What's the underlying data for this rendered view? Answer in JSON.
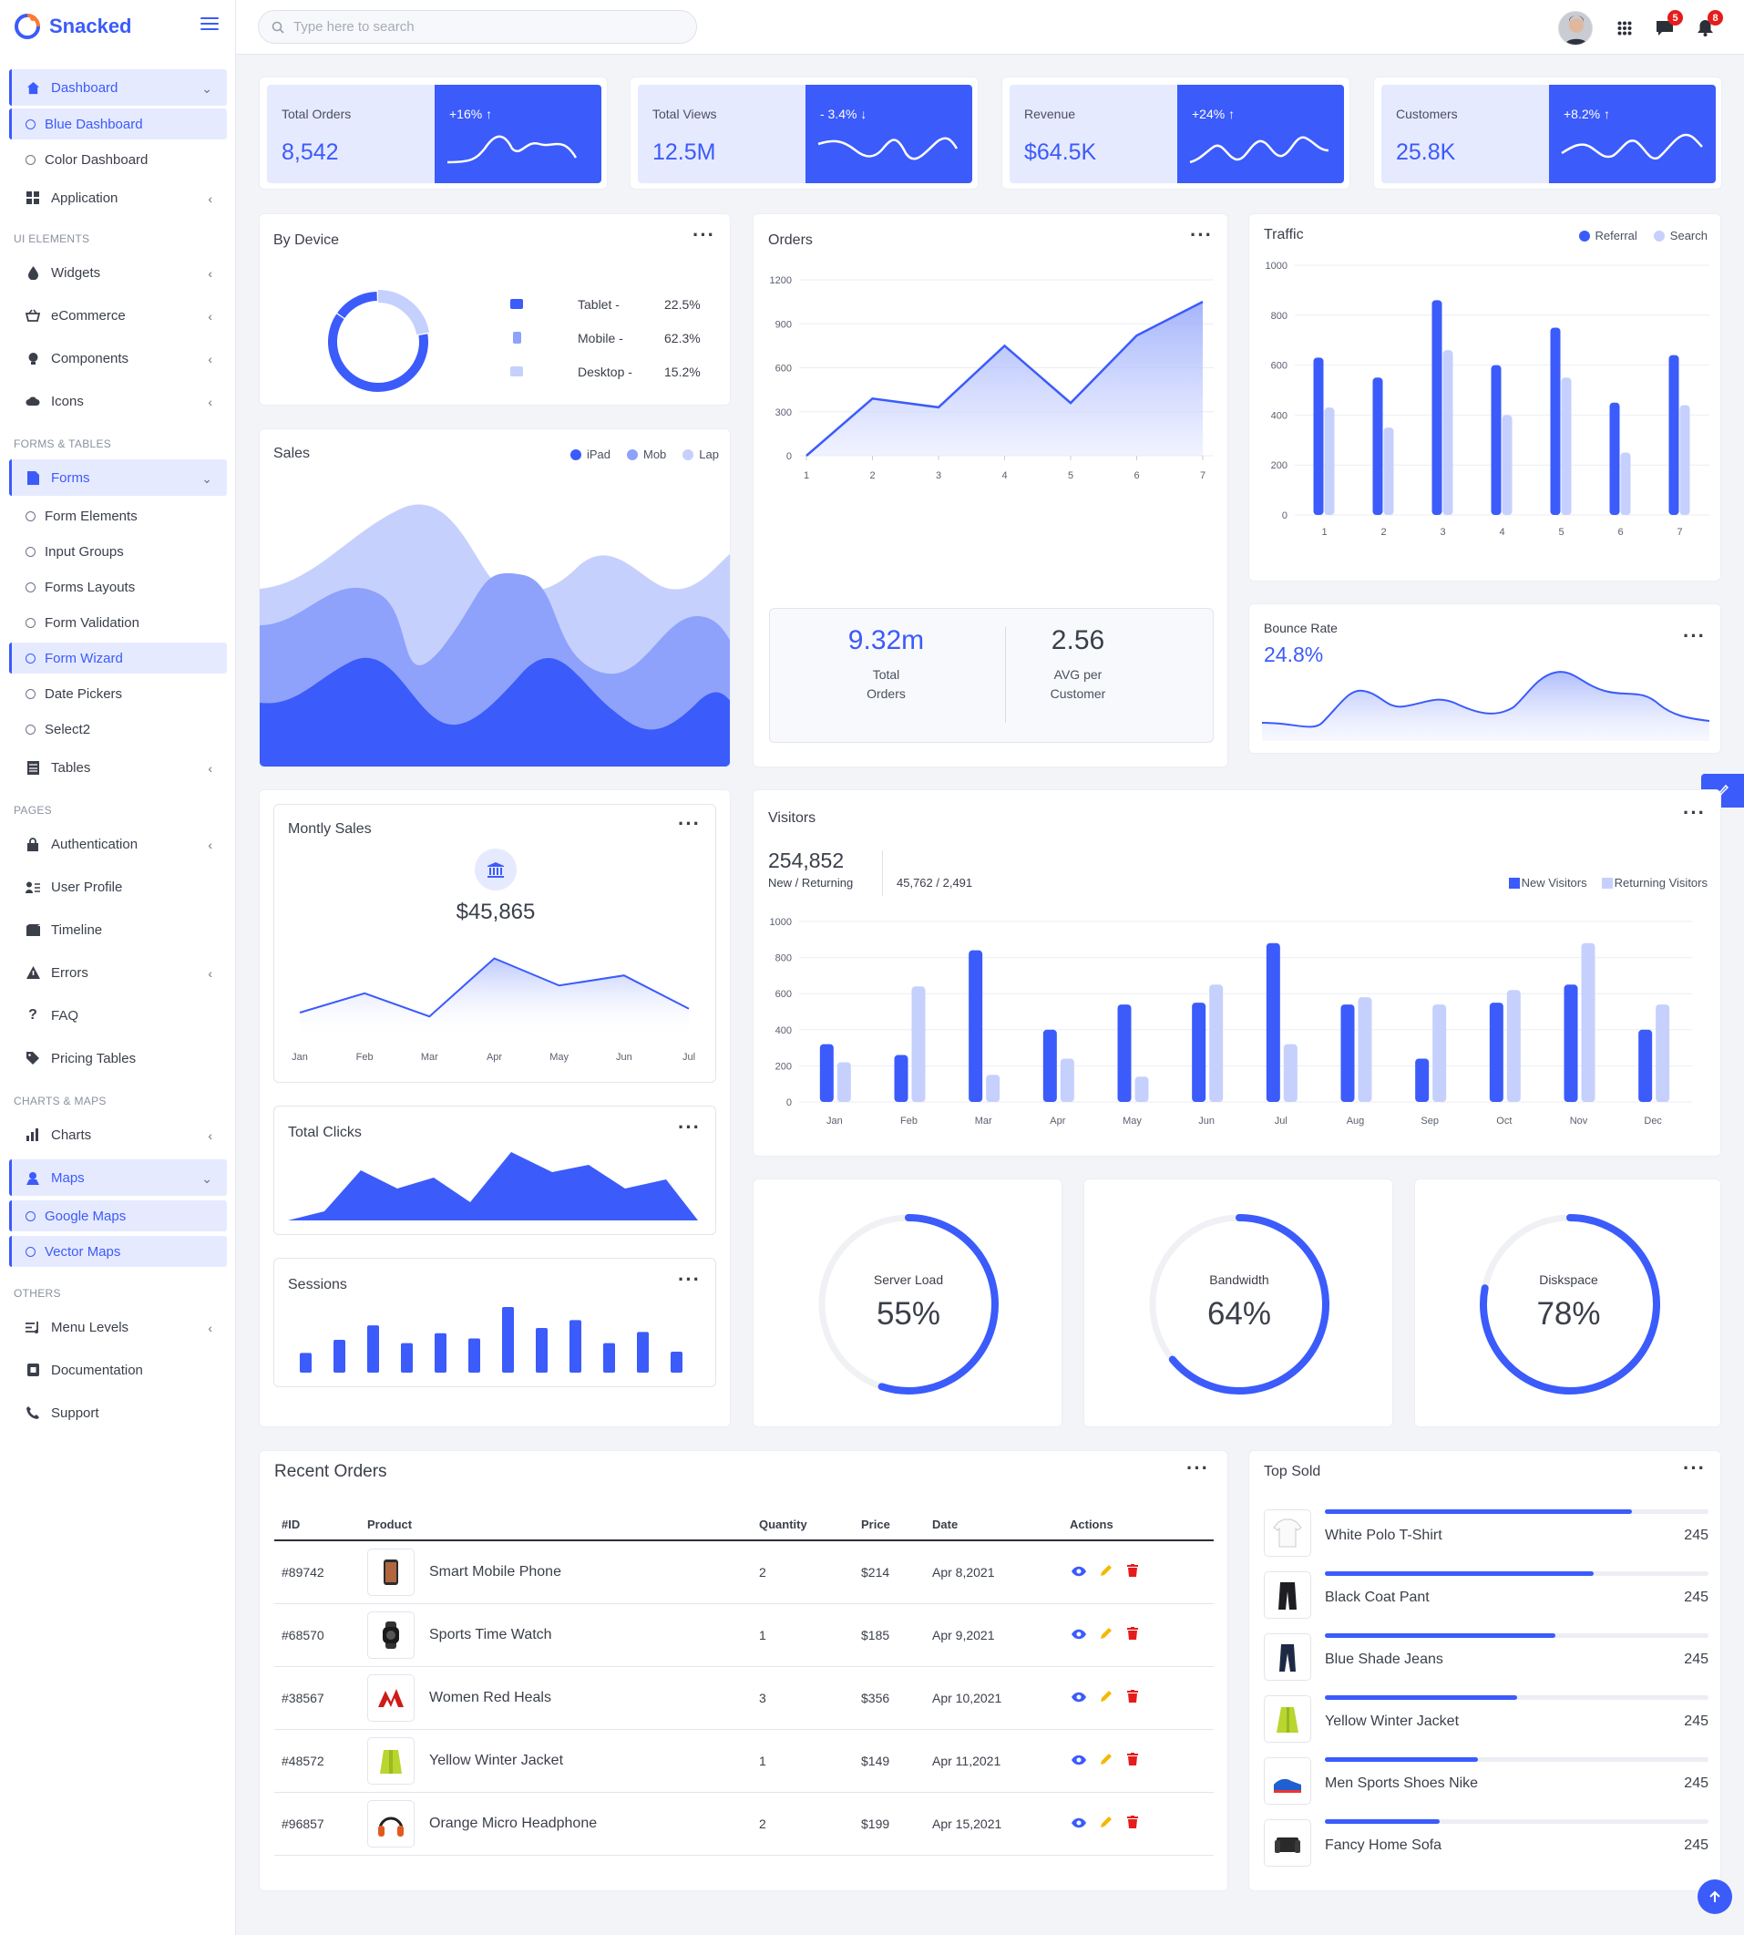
{
  "app": {
    "brand": "Snacked"
  },
  "search": {
    "placeholder": "Type here to search"
  },
  "header": {
    "messages_count": "5",
    "notifications_count": "8"
  },
  "sidebar": {
    "dashboard": "Dashboard",
    "blue_dashboard": "Blue Dashboard",
    "color_dashboard": "Color Dashboard",
    "application": "Application",
    "sec_ui": "UI ELEMENTS",
    "widgets": "Widgets",
    "ecommerce": "eCommerce",
    "components": "Components",
    "icons": "Icons",
    "sec_forms": "FORMS & TABLES",
    "forms": "Forms",
    "form_elements": "Form Elements",
    "input_groups": "Input Groups",
    "forms_layouts": "Forms Layouts",
    "form_validation": "Form Validation",
    "form_wizard": "Form Wizard",
    "date_pickers": "Date Pickers",
    "select2": "Select2",
    "tables": "Tables",
    "sec_pages": "PAGES",
    "authentication": "Authentication",
    "user_profile": "User Profile",
    "timeline": "Timeline",
    "errors": "Errors",
    "faq": "FAQ",
    "pricing_tables": "Pricing Tables",
    "sec_charts": "CHARTS & MAPS",
    "charts": "Charts",
    "maps": "Maps",
    "google_maps": "Google Maps",
    "vector_maps": "Vector Maps",
    "sec_others": "OTHERS",
    "menu_levels": "Menu Levels",
    "documentation": "Documentation",
    "support": "Support"
  },
  "stats": [
    {
      "label": "Total Orders",
      "value": "8,542",
      "change": "+16% ↑"
    },
    {
      "label": "Total Views",
      "value": "12.5M",
      "change": "- 3.4% ↓"
    },
    {
      "label": "Revenue",
      "value": "$64.5K",
      "change": "+24% ↑"
    },
    {
      "label": "Customers",
      "value": "25.8K",
      "change": "+8.2% ↑"
    }
  ],
  "by_device": {
    "title": "By Device",
    "items": [
      {
        "name": "Tablet -",
        "pct": "22.5%"
      },
      {
        "name": "Mobile -",
        "pct": "62.3%"
      },
      {
        "name": "Desktop -",
        "pct": "15.2%"
      }
    ]
  },
  "sales": {
    "title": "Sales",
    "legend": [
      "iPad",
      "Mob",
      "Lap"
    ]
  },
  "orders": {
    "title": "Orders",
    "total_value": "9.32m",
    "total_label1": "Total",
    "total_label2": "Orders",
    "avg_value": "2.56",
    "avg_label1": "AVG per",
    "avg_label2": "Customer"
  },
  "traffic": {
    "title": "Traffic",
    "legend": [
      "Referral",
      "Search"
    ]
  },
  "bounce": {
    "title": "Bounce Rate",
    "value": "24.8%"
  },
  "monthly_sales": {
    "title": "Montly Sales",
    "value": "$45,865"
  },
  "total_clicks": {
    "title": "Total Clicks"
  },
  "sessions": {
    "title": "Sessions"
  },
  "visitors": {
    "title": "Visitors",
    "value": "254,852",
    "sub": "New / Returning",
    "split": "45,762 / 2,491",
    "legend": [
      "New Visitors",
      "Returning Visitors"
    ]
  },
  "gauges": [
    {
      "label": "Server Load",
      "value": "55%",
      "pct": 55
    },
    {
      "label": "Bandwidth",
      "value": "64%",
      "pct": 64
    },
    {
      "label": "Diskspace",
      "value": "78%",
      "pct": 78
    }
  ],
  "recent_orders": {
    "title": "Recent Orders",
    "headers": [
      "#ID",
      "Product",
      "Quantity",
      "Price",
      "Date",
      "Actions"
    ],
    "rows": [
      {
        "id": "#89742",
        "product": "Smart Mobile Phone",
        "qty": "2",
        "price": "$214",
        "date": "Apr 8,2021"
      },
      {
        "id": "#68570",
        "product": "Sports Time Watch",
        "qty": "1",
        "price": "$185",
        "date": "Apr 9,2021"
      },
      {
        "id": "#38567",
        "product": "Women Red Heals",
        "qty": "3",
        "price": "$356",
        "date": "Apr 10,2021"
      },
      {
        "id": "#48572",
        "product": "Yellow Winter Jacket",
        "qty": "1",
        "price": "$149",
        "date": "Apr 11,2021"
      },
      {
        "id": "#96857",
        "product": "Orange Micro Headphone",
        "qty": "2",
        "price": "$199",
        "date": "Apr 15,2021"
      }
    ]
  },
  "top_sold": {
    "title": "Top Sold",
    "items": [
      {
        "name": "White Polo T-Shirt",
        "count": "245",
        "progress": 0.8
      },
      {
        "name": "Black Coat Pant",
        "count": "245",
        "progress": 0.7
      },
      {
        "name": "Blue Shade Jeans",
        "count": "245",
        "progress": 0.6
      },
      {
        "name": "Yellow Winter Jacket",
        "count": "245",
        "progress": 0.5
      },
      {
        "name": "Men Sports Shoes Nike",
        "count": "245",
        "progress": 0.4
      },
      {
        "name": "Fancy Home Sofa",
        "count": "245",
        "progress": 0.3
      }
    ]
  },
  "chart_data": [
    {
      "type": "pie",
      "title": "By Device",
      "categories": [
        "Tablet",
        "Mobile",
        "Desktop"
      ],
      "values": [
        22.5,
        62.3,
        15.2
      ]
    },
    {
      "type": "area",
      "title": "Orders",
      "x": [
        1,
        2,
        3,
        4,
        5,
        6,
        7
      ],
      "values": [
        0,
        390,
        330,
        750,
        360,
        820,
        1050
      ],
      "ylim": [
        0,
        1200
      ],
      "yticks": [
        0,
        300,
        600,
        900,
        1200
      ]
    },
    {
      "type": "bar",
      "title": "Traffic",
      "categories": [
        "1",
        "2",
        "3",
        "4",
        "5",
        "6",
        "7"
      ],
      "series": [
        {
          "name": "Referral",
          "values": [
            630,
            550,
            860,
            600,
            750,
            450,
            640
          ]
        },
        {
          "name": "Search",
          "values": [
            430,
            350,
            660,
            400,
            550,
            250,
            440
          ]
        }
      ],
      "ylim": [
        0,
        1000
      ],
      "yticks": [
        0,
        200,
        400,
        600,
        800,
        1000
      ]
    },
    {
      "type": "line",
      "title": "Montly Sales",
      "categories": [
        "Jan",
        "Feb",
        "Mar",
        "Apr",
        "May",
        "Jun",
        "Jul"
      ],
      "values": [
        20,
        45,
        15,
        90,
        55,
        68,
        25
      ]
    },
    {
      "type": "bar",
      "title": "Sessions",
      "values": [
        30,
        50,
        72,
        45,
        60,
        52,
        100,
        68,
        80,
        45,
        62,
        32
      ]
    },
    {
      "type": "bar",
      "title": "Visitors",
      "categories": [
        "Jan",
        "Feb",
        "Mar",
        "Apr",
        "May",
        "Jun",
        "Jul",
        "Aug",
        "Sep",
        "Oct",
        "Nov",
        "Dec"
      ],
      "series": [
        {
          "name": "New Visitors",
          "values": [
            320,
            260,
            840,
            400,
            540,
            550,
            880,
            540,
            240,
            550,
            650,
            400
          ]
        },
        {
          "name": "Returning Visitors",
          "values": [
            220,
            640,
            150,
            240,
            140,
            650,
            320,
            580,
            540,
            620,
            880,
            540
          ]
        }
      ],
      "ylim": [
        0,
        1000
      ],
      "yticks": [
        0,
        200,
        400,
        600,
        800,
        1000
      ]
    }
  ]
}
